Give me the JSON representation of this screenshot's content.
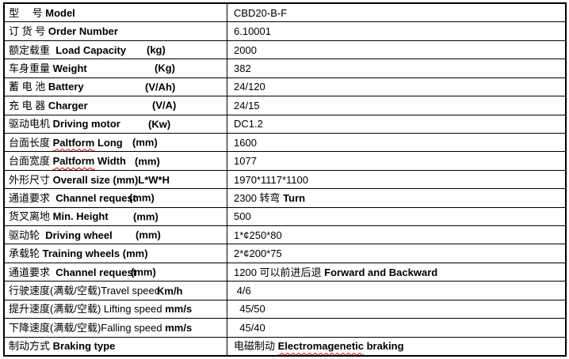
{
  "document": {
    "type": "specification-table",
    "language": "zh-en",
    "border_color": "#000000",
    "text_color": "#000000",
    "spellcheck_underline_color": "#cc0000",
    "background": "#ffffff"
  },
  "table": {
    "columns": [
      "parameter",
      "value"
    ],
    "rows": [
      {
        "label": [
          {
            "t": "型　 号 ",
            "b": false
          },
          {
            "t": "Model",
            "b": true
          }
        ],
        "value": [
          {
            "t": "CBD20-B-F",
            "b": false
          }
        ]
      },
      {
        "label": [
          {
            "t": "订 货 号 ",
            "b": false
          },
          {
            "t": "Order Number",
            "b": true
          }
        ],
        "value": [
          {
            "t": "6.10001",
            "b": false
          }
        ]
      },
      {
        "label": [
          {
            "t": "额定载重  ",
            "b": false
          },
          {
            "t": "Load Capacity",
            "b": true
          }
        ],
        "unit": {
          "t": "(kg)",
          "ux": 179
        },
        "value": [
          {
            "t": "2000",
            "b": false
          }
        ]
      },
      {
        "label": [
          {
            "t": "车身重量 ",
            "b": false
          },
          {
            "t": "Weight",
            "b": true
          }
        ],
        "unit": {
          "t": "(Kg)",
          "ux": 189
        },
        "value": [
          {
            "t": "382",
            "b": false
          }
        ]
      },
      {
        "label": [
          {
            "t": "蓄 电 池 ",
            "b": false
          },
          {
            "t": "Battery",
            "b": true
          }
        ],
        "unit": {
          "t": "(V/Ah)",
          "ux": 177
        },
        "value": [
          {
            "t": "24/120",
            "b": false
          }
        ]
      },
      {
        "label": [
          {
            "t": "充 电 器 ",
            "b": false
          },
          {
            "t": "Charger",
            "b": true
          }
        ],
        "unit": {
          "t": "(V/A)",
          "ux": 186
        },
        "value": [
          {
            "t": "24/15",
            "b": false
          }
        ]
      },
      {
        "label": [
          {
            "t": "驱动电机 ",
            "b": false
          },
          {
            "t": "Driving motor",
            "b": true
          }
        ],
        "unit": {
          "t": "(Kw)",
          "ux": 181
        },
        "value": [
          {
            "t": "DC1.2",
            "b": false
          }
        ]
      },
      {
        "label": [
          {
            "t": "台面长度 ",
            "b": false
          },
          {
            "t": "Paltform",
            "b": true,
            "sq": true
          },
          {
            "t": " Long",
            "b": true
          }
        ],
        "unit": {
          "t": "(mm)",
          "ux": 161
        },
        "value": [
          {
            "t": "1600",
            "b": false
          }
        ]
      },
      {
        "label": [
          {
            "t": "台面宽度 ",
            "b": false
          },
          {
            "t": "Paltform",
            "b": true,
            "sq": true
          },
          {
            "t": " Width",
            "b": true
          }
        ],
        "unit": {
          "t": "(mm)",
          "ux": 164
        },
        "value": [
          {
            "t": "1077",
            "b": false
          }
        ]
      },
      {
        "label": [
          {
            "t": "外形尺寸 ",
            "b": false
          },
          {
            "t": "Overall size (mm)L*W*H",
            "b": true
          }
        ],
        "value": [
          {
            "t": "1970*1117*1100",
            "b": false
          }
        ]
      },
      {
        "label": [
          {
            "t": "通道要求  ",
            "b": false
          },
          {
            "t": "Channel request",
            "b": true
          }
        ],
        "unit": {
          "t": "(mm)",
          "ux": 157
        },
        "value": [
          {
            "t": "2300 转弯 ",
            "b": false
          },
          {
            "t": "Turn",
            "b": true
          }
        ]
      },
      {
        "label": [
          {
            "t": "货叉离地 ",
            "b": false
          },
          {
            "t": "Min. Height",
            "b": true
          }
        ],
        "unit": {
          "t": "(mm)",
          "ux": 162
        },
        "value": [
          {
            "t": "500",
            "b": false
          }
        ]
      },
      {
        "label": [
          {
            "t": "驱动轮  ",
            "b": false
          },
          {
            "t": "Driving wheel",
            "b": true
          }
        ],
        "unit": {
          "t": "(mm)",
          "ux": 165
        },
        "value": [
          {
            "t": "1*¢250*80",
            "b": false
          }
        ]
      },
      {
        "label": [
          {
            "t": "承载轮 ",
            "b": false
          },
          {
            "t": "Training wheels (mm)",
            "b": true
          }
        ],
        "value": [
          {
            "t": "2*¢200*75",
            "b": false
          }
        ]
      },
      {
        "label": [
          {
            "t": "通道要求  ",
            "b": false
          },
          {
            "t": "Channel request",
            "b": true
          }
        ],
        "unit": {
          "t": "(mm)",
          "ux": 159
        },
        "value": [
          {
            "t": "1200 可以前进后退 ",
            "b": false
          },
          {
            "t": "Forward and Backward",
            "b": true
          }
        ]
      },
      {
        "label": [
          {
            "t": "行驶速度(满载/空载)Travel speed",
            "b": false
          }
        ],
        "unit": {
          "t": "Km/h",
          "ux": 192
        },
        "value": [
          {
            "t": " 4/6",
            "b": false
          }
        ]
      },
      {
        "label": [
          {
            "t": "提升速度(满载/空载) Lifting speed ",
            "b": false
          },
          {
            "t": "mm/s",
            "b": true
          }
        ],
        "value": [
          {
            "t": "  45/50",
            "b": false
          }
        ]
      },
      {
        "label": [
          {
            "t": "下降速度(满载/空载)Falling speed ",
            "b": false
          },
          {
            "t": "mm/s",
            "b": true
          }
        ],
        "value": [
          {
            "t": "  45/40",
            "b": false
          }
        ]
      },
      {
        "label": [
          {
            "t": "制动方式 ",
            "b": false
          },
          {
            "t": "Braking type",
            "b": true
          }
        ],
        "value": [
          {
            "t": "电磁制动 ",
            "b": false
          },
          {
            "t": "Electromagenetic",
            "b": true,
            "sq": true
          },
          {
            "t": " braking",
            "b": true
          }
        ]
      }
    ]
  }
}
